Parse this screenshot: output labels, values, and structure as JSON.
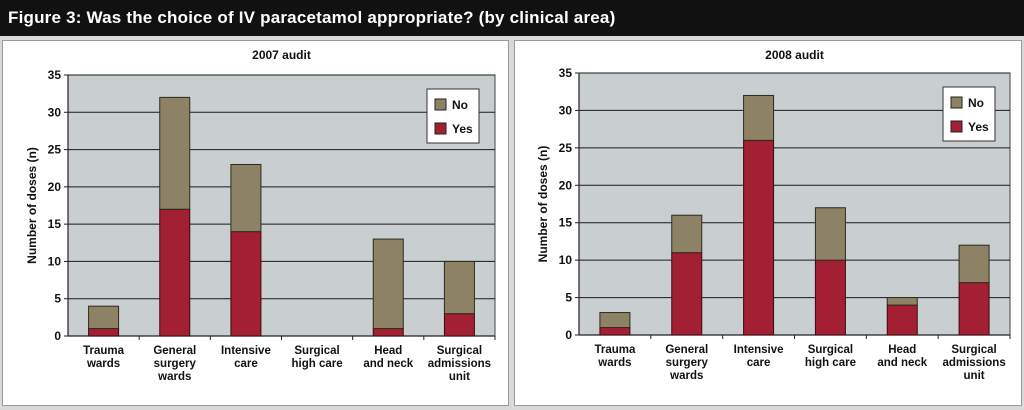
{
  "figure_title": "Figure 3: Was the choice of IV paracetamol appropriate? (by clinical area)",
  "colors": {
    "yes": "#a31f34",
    "no": "#8e8266",
    "plot_bg": "#c9ced0",
    "grid": "#1a1a1a"
  },
  "chart_data": [
    {
      "type": "bar",
      "stacked": true,
      "title": "2007 audit",
      "ylabel": "Number of doses (n)",
      "ylim": [
        0,
        35
      ],
      "yticks": [
        0,
        5,
        10,
        15,
        20,
        25,
        30,
        35
      ],
      "categories": [
        [
          "Trauma",
          "wards"
        ],
        [
          "General",
          "surgery",
          "wards"
        ],
        [
          "Intensive",
          "care"
        ],
        [
          "Surgical",
          "high care"
        ],
        [
          "Head",
          "and neck"
        ],
        [
          "Surgical",
          "admissions",
          "unit"
        ]
      ],
      "series": [
        {
          "name": "Yes",
          "values": [
            1,
            17,
            14,
            0,
            1,
            3
          ]
        },
        {
          "name": "No",
          "values": [
            3,
            15,
            9,
            0,
            12,
            7
          ]
        }
      ],
      "legend": [
        "No",
        "Yes"
      ],
      "legend_position": "top-right",
      "grid": true
    },
    {
      "type": "bar",
      "stacked": true,
      "title": "2008 audit",
      "ylabel": "Number of doses (n)",
      "ylim": [
        0,
        35
      ],
      "yticks": [
        0,
        5,
        10,
        15,
        20,
        25,
        30,
        35
      ],
      "categories": [
        [
          "Trauma",
          "wards"
        ],
        [
          "General",
          "surgery",
          "wards"
        ],
        [
          "Intensive",
          "care"
        ],
        [
          "Surgical",
          "high care"
        ],
        [
          "Head",
          "and neck"
        ],
        [
          "Surgical",
          "admissions",
          "unit"
        ]
      ],
      "series": [
        {
          "name": "Yes",
          "values": [
            1,
            11,
            26,
            10,
            4,
            7
          ]
        },
        {
          "name": "No",
          "values": [
            2,
            5,
            6,
            7,
            1,
            5
          ]
        }
      ],
      "legend": [
        "No",
        "Yes"
      ],
      "legend_position": "top-right",
      "grid": true
    }
  ]
}
